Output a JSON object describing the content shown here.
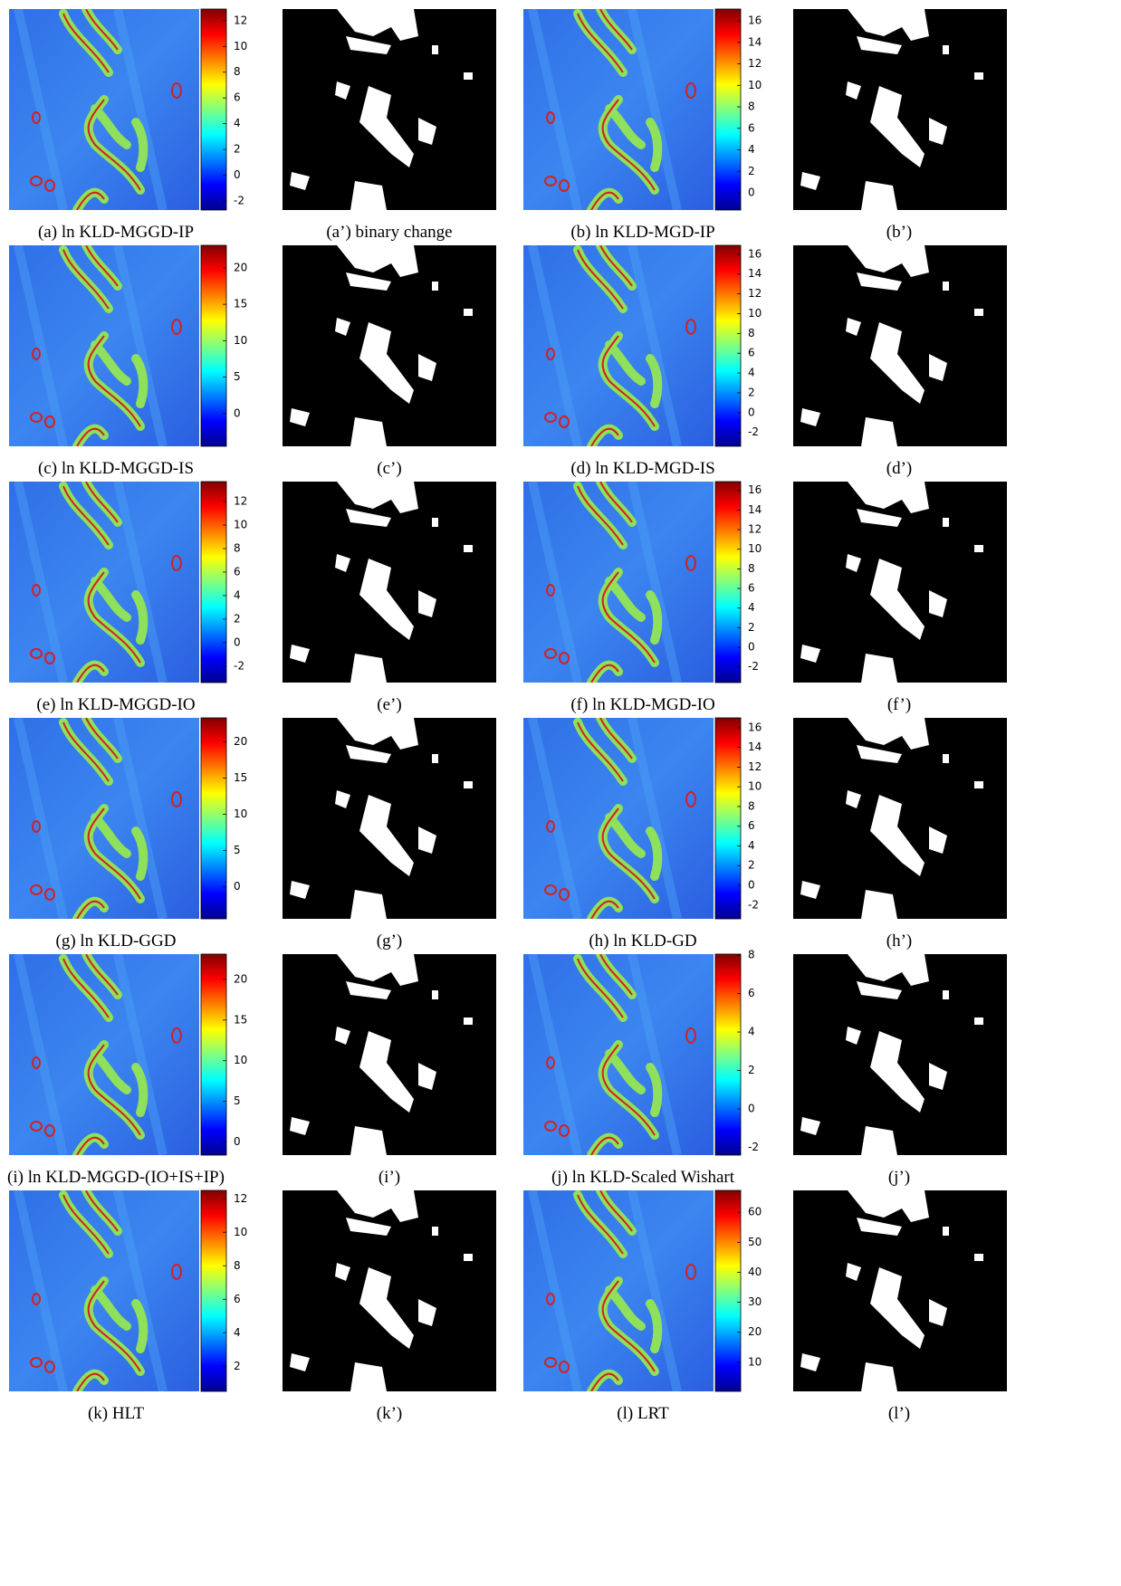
{
  "figure": {
    "panels": [
      {
        "caption": "(a) ln KLD-MGGD-IP",
        "colorbar": {
          "range": [
            -2.7,
            12.9
          ],
          "ticks": [
            -2,
            0,
            2,
            4,
            6,
            8,
            10,
            12
          ]
        }
      },
      {
        "caption": "(a’) binary change"
      },
      {
        "caption": "(b) ln KLD-MGD-IP",
        "colorbar": {
          "range": [
            -1.6,
            17.1
          ],
          "ticks": [
            0,
            2,
            4,
            6,
            8,
            10,
            12,
            14,
            16
          ]
        }
      },
      {
        "caption": "(b’)"
      },
      {
        "caption": "(c) ln KLD-MGGD-IS",
        "colorbar": {
          "range": [
            -4.5,
            23.1
          ],
          "ticks": [
            0,
            5,
            10,
            15,
            20
          ]
        }
      },
      {
        "caption": "(c’)"
      },
      {
        "caption": "(d) ln KLD-MGD-IS",
        "colorbar": {
          "range": [
            -3.4,
            16.9
          ],
          "ticks": [
            -2,
            0,
            2,
            4,
            6,
            8,
            10,
            12,
            14,
            16
          ]
        }
      },
      {
        "caption": "(d’)"
      },
      {
        "caption": "(e) ln KLD-MGGD-IO",
        "colorbar": {
          "range": [
            -3.4,
            13.7
          ],
          "ticks": [
            -2,
            0,
            2,
            4,
            6,
            8,
            10,
            12
          ]
        }
      },
      {
        "caption": "(e’)"
      },
      {
        "caption": "(f) ln KLD-MGD-IO",
        "colorbar": {
          "range": [
            -3.6,
            16.9
          ],
          "ticks": [
            -2,
            0,
            2,
            4,
            6,
            8,
            10,
            12,
            14,
            16
          ]
        }
      },
      {
        "caption": "(f’)"
      },
      {
        "caption": "(g) ln KLD-GGD",
        "colorbar": {
          "range": [
            -4.4,
            23.3
          ],
          "ticks": [
            0,
            5,
            10,
            15,
            20
          ]
        }
      },
      {
        "caption": "(g’)"
      },
      {
        "caption": "(h) ln KLD-GD",
        "colorbar": {
          "range": [
            -3.4,
            17
          ],
          "ticks": [
            -2,
            0,
            2,
            4,
            6,
            8,
            10,
            12,
            14,
            16
          ]
        }
      },
      {
        "caption": "(h’)"
      },
      {
        "caption": "(i) ln KLD-MGGD-(IO+IS+IP)",
        "colorbar": {
          "range": [
            -1.6,
            23.1
          ],
          "ticks": [
            0,
            5,
            10,
            15,
            20
          ]
        }
      },
      {
        "caption": "(i’)"
      },
      {
        "caption": "(j) ln KLD-Scaled Wishart",
        "colorbar": {
          "range": [
            -2.4,
            8.05
          ],
          "ticks": [
            -2,
            0,
            2,
            4,
            6,
            8
          ]
        }
      },
      {
        "caption": "(j’)"
      },
      {
        "caption": "(k) HLT",
        "colorbar": {
          "range": [
            0.5,
            12.5
          ],
          "ticks": [
            2,
            4,
            6,
            8,
            10,
            12
          ]
        }
      },
      {
        "caption": "(k’)"
      },
      {
        "caption": "(l) LRT",
        "colorbar": {
          "range": [
            0.3,
            67.3
          ],
          "ticks": [
            10,
            20,
            30,
            40,
            50,
            60
          ]
        }
      },
      {
        "caption": "(l’)"
      }
    ]
  }
}
